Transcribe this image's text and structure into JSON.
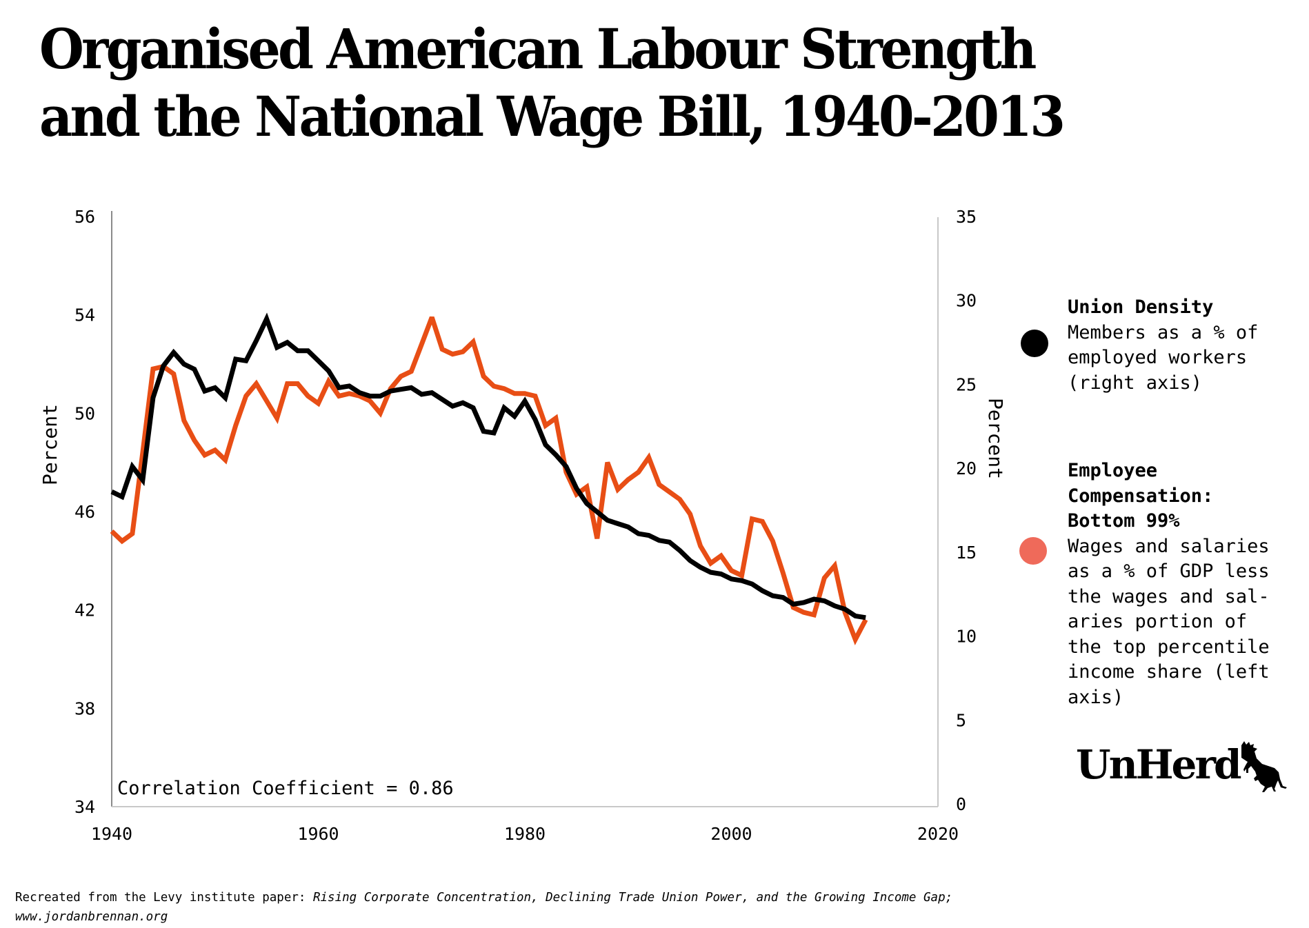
{
  "title_line1": "Organised American Labour Strength",
  "title_line2": "and the National Wage Bill, 1940-2013",
  "chart_data": {
    "type": "line",
    "title": "Organised American Labour Strength and the National Wage Bill, 1940-2013",
    "xlabel": "",
    "ylabel_left": "Percent",
    "ylabel_right": "Percent",
    "xlim": [
      1940,
      2020
    ],
    "x_ticks": [
      "1940",
      "1960",
      "1980",
      "2000",
      "2020"
    ],
    "y_left_ticks": [
      "56",
      "54",
      "50",
      "46",
      "42",
      "38",
      "34"
    ],
    "y_left_range": [
      34,
      56
    ],
    "y_right_ticks": [
      "35",
      "30",
      "25",
      "20",
      "15",
      "10",
      "5",
      "0"
    ],
    "y_right_range": [
      0,
      35
    ],
    "grid": false,
    "legend_position": "right",
    "annotation": "Correlation Coefficient = 0.86",
    "x": [
      1940,
      1941,
      1942,
      1943,
      1944,
      1945,
      1946,
      1947,
      1948,
      1949,
      1950,
      1951,
      1952,
      1953,
      1954,
      1955,
      1956,
      1957,
      1958,
      1959,
      1960,
      1961,
      1962,
      1963,
      1964,
      1965,
      1966,
      1967,
      1968,
      1969,
      1970,
      1971,
      1972,
      1973,
      1974,
      1975,
      1976,
      1977,
      1978,
      1979,
      1980,
      1981,
      1982,
      1983,
      1984,
      1985,
      1986,
      1987,
      1988,
      1989,
      1990,
      1991,
      1992,
      1993,
      1994,
      1995,
      1996,
      1997,
      1998,
      1999,
      2000,
      2001,
      2002,
      2003,
      2004,
      2005,
      2006,
      2007,
      2008,
      2009,
      2010,
      2011,
      2012,
      2013
    ],
    "series": [
      {
        "name": "Union Density",
        "axis": "right",
        "color": "#000000",
        "values": [
          18.6,
          18.3,
          20.1,
          19.3,
          24.2,
          26.1,
          26.9,
          26.2,
          25.9,
          24.6,
          24.8,
          24.2,
          26.5,
          26.4,
          27.6,
          28.9,
          27.2,
          27.5,
          27.0,
          27.0,
          26.4,
          25.8,
          24.8,
          24.9,
          24.5,
          24.3,
          24.3,
          24.6,
          24.7,
          24.8,
          24.4,
          24.5,
          24.1,
          23.7,
          23.9,
          23.6,
          22.2,
          22.1,
          23.6,
          23.1,
          24.0,
          22.9,
          21.4,
          20.8,
          20.1,
          18.8,
          17.9,
          17.4,
          16.9,
          16.7,
          16.5,
          16.1,
          16.0,
          15.7,
          15.6,
          15.1,
          14.5,
          14.1,
          13.8,
          13.7,
          13.4,
          13.3,
          13.1,
          12.7,
          12.4,
          12.3,
          11.9,
          12.0,
          12.2,
          12.1,
          11.8,
          11.6,
          11.2,
          11.1
        ]
      },
      {
        "name": "Employee Compensation: Bottom 99%",
        "axis": "left",
        "color": "#e84e15",
        "values": [
          45.2,
          44.8,
          45.1,
          48.4,
          51.8,
          51.9,
          51.6,
          49.7,
          48.9,
          48.3,
          48.5,
          48.1,
          49.5,
          50.7,
          51.2,
          50.5,
          49.8,
          51.2,
          51.2,
          50.7,
          50.4,
          51.3,
          50.7,
          50.8,
          50.7,
          50.5,
          50.0,
          51.0,
          51.5,
          51.7,
          52.8,
          53.9,
          52.6,
          52.4,
          52.5,
          52.9,
          51.5,
          51.1,
          51.0,
          50.8,
          50.8,
          50.7,
          49.5,
          49.8,
          47.6,
          46.7,
          47.0,
          44.9,
          48.0,
          46.9,
          47.3,
          47.6,
          48.2,
          47.1,
          46.8,
          46.5,
          45.9,
          44.6,
          43.9,
          44.2,
          43.6,
          43.4,
          45.7,
          45.6,
          44.8,
          43.5,
          42.1,
          41.9,
          41.8,
          43.3,
          43.8,
          41.9,
          40.8,
          41.6
        ]
      }
    ]
  },
  "legend": {
    "items": [
      {
        "name": "Union Density",
        "lines": [
          "Members as a % of",
          "employed workers",
          "(right axis)"
        ],
        "color": "#000000"
      },
      {
        "name_lines": [
          "Employee",
          "Compensation:",
          "Bottom 99%"
        ],
        "lines": [
          "Wages and salaries",
          "as a % of GDP less",
          "the wages and sal-",
          "aries portion of",
          "the top percentile",
          "income share (left",
          "axis)"
        ],
        "color": "#ef6a5a"
      }
    ]
  },
  "logo": {
    "text": "UnHerd",
    "icon": "cow-icon"
  },
  "footer": {
    "prefix": "Recreated from the Levy institute paper: ",
    "paper_title": "Rising Corporate Concentration, Declining Trade Union Power, and the Growing Income Gap;",
    "url": "www.jordanbrennan.org"
  }
}
